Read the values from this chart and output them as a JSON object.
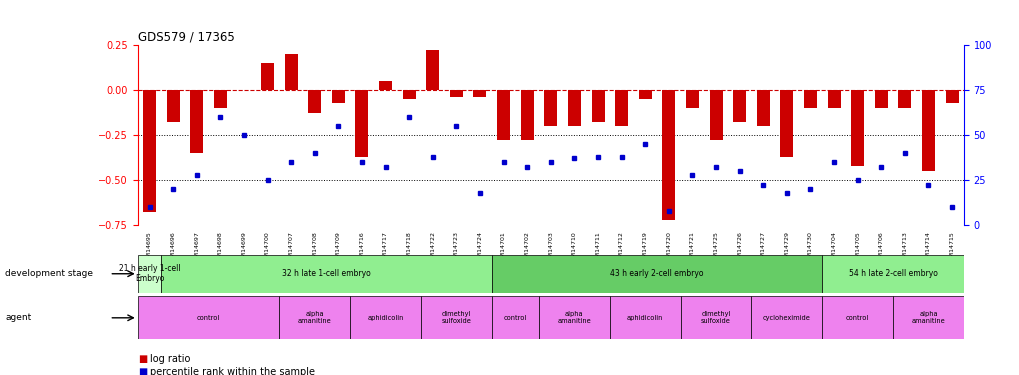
{
  "title": "GDS579 / 17365",
  "samples": [
    "GSM14695",
    "GSM14696",
    "GSM14697",
    "GSM14698",
    "GSM14699",
    "GSM14700",
    "GSM14707",
    "GSM14708",
    "GSM14709",
    "GSM14716",
    "GSM14717",
    "GSM14718",
    "GSM14722",
    "GSM14723",
    "GSM14724",
    "GSM14701",
    "GSM14702",
    "GSM14703",
    "GSM14710",
    "GSM14711",
    "GSM14712",
    "GSM14719",
    "GSM14720",
    "GSM14721",
    "GSM14725",
    "GSM14726",
    "GSM14727",
    "GSM14729",
    "GSM14730",
    "GSM14704",
    "GSM14705",
    "GSM14706",
    "GSM14713",
    "GSM14714",
    "GSM14715"
  ],
  "log_ratio": [
    -0.68,
    -0.18,
    -0.35,
    -0.1,
    0.0,
    0.15,
    0.2,
    -0.13,
    -0.07,
    -0.37,
    0.05,
    -0.05,
    0.22,
    -0.04,
    -0.04,
    -0.28,
    -0.28,
    -0.2,
    -0.2,
    -0.18,
    -0.2,
    -0.05,
    -0.72,
    -0.1,
    -0.28,
    -0.18,
    -0.2,
    -0.37,
    -0.1,
    -0.1,
    -0.42,
    -0.1,
    -0.1,
    -0.45,
    -0.07
  ],
  "percentile": [
    10,
    20,
    28,
    60,
    50,
    25,
    35,
    40,
    55,
    35,
    32,
    60,
    38,
    55,
    18,
    35,
    32,
    35,
    37,
    38,
    38,
    45,
    8,
    28,
    32,
    30,
    22,
    18,
    20,
    35,
    25,
    32,
    40,
    22,
    10
  ],
  "dev_ranges": [
    [
      0,
      1
    ],
    [
      1,
      15
    ],
    [
      15,
      29
    ],
    [
      29,
      35
    ]
  ],
  "dev_labels": [
    "21 h early 1-cell\nEmbryo",
    "32 h late 1-cell embryo",
    "43 h early 2-cell embryo",
    "54 h late 2-cell embryo"
  ],
  "dev_colors": [
    "#ccffcc",
    "#99ee99",
    "#66dd66",
    "#99ee99"
  ],
  "agent_ranges": [
    [
      0,
      6
    ],
    [
      6,
      9
    ],
    [
      9,
      12
    ],
    [
      12,
      15
    ],
    [
      15,
      17
    ],
    [
      17,
      20
    ],
    [
      20,
      23
    ],
    [
      23,
      26
    ],
    [
      26,
      29
    ],
    [
      29,
      32
    ],
    [
      32,
      35
    ]
  ],
  "agent_labels": [
    "control",
    "alpha\namanitine",
    "aphidicolin",
    "dimethyl\nsulfoxide",
    "control",
    "alpha\namanitine",
    "aphidicolin",
    "dimethyl\nsulfoxide",
    "cycloheximide",
    "control",
    "alpha\namanitine"
  ],
  "agent_color": "#ee82ee",
  "ylim_left": [
    -0.75,
    0.25
  ],
  "ylim_right": [
    0,
    100
  ],
  "bar_color": "#cc0000",
  "dot_color": "#0000cc",
  "background_color": "#ffffff",
  "zero_line_color": "#cc0000",
  "dotted_line_color": "#000000"
}
